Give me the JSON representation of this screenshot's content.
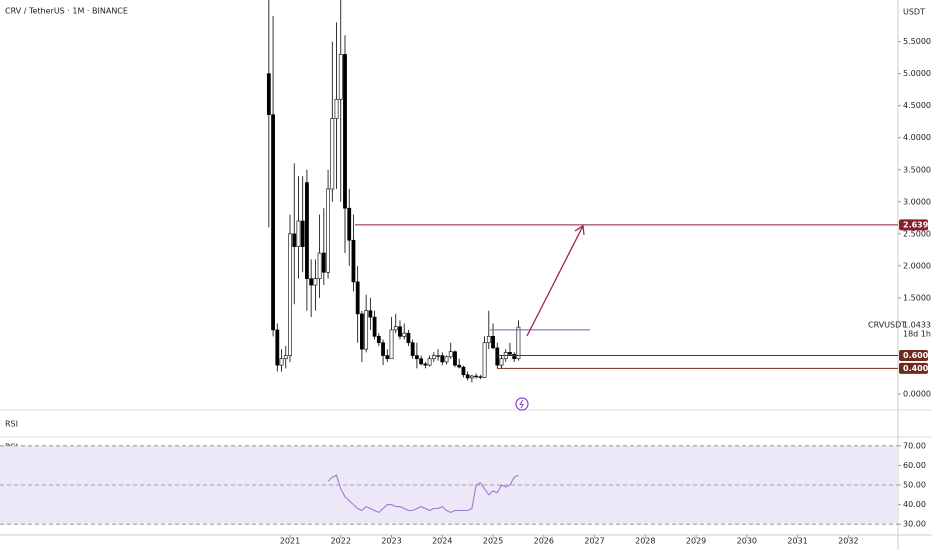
{
  "chart_data": [
    {
      "type": "candlestick",
      "title": "CRV / TetherUS · 1M · BINANCE",
      "currency": "USDT",
      "symbol": "CRVUSDT",
      "countdown": "18d 1h",
      "x": [
        "2020-08",
        "2020-09",
        "2020-10",
        "2020-11",
        "2020-12",
        "2021-01",
        "2021-02",
        "2021-03",
        "2021-04",
        "2021-05",
        "2021-06",
        "2021-07",
        "2021-08",
        "2021-09",
        "2021-10",
        "2021-11",
        "2021-12",
        "2022-01",
        "2022-02",
        "2022-03",
        "2022-04",
        "2022-05",
        "2022-06",
        "2022-07",
        "2022-08",
        "2022-09",
        "2022-10",
        "2022-11",
        "2022-12",
        "2023-01",
        "2023-02",
        "2023-03",
        "2023-04",
        "2023-05",
        "2023-06",
        "2023-07",
        "2023-08",
        "2023-09",
        "2023-10",
        "2023-11",
        "2023-12",
        "2024-01",
        "2024-02",
        "2024-03",
        "2024-04",
        "2024-05",
        "2024-06",
        "2024-07",
        "2024-08",
        "2024-09",
        "2024-10",
        "2024-11",
        "2024-12",
        "2025-01",
        "2025-02",
        "2025-03",
        "2025-04",
        "2025-05",
        "2025-06",
        "2025-07"
      ],
      "open": [
        5.0,
        4.36,
        1.0,
        0.45,
        0.55,
        0.6,
        2.5,
        2.3,
        2.7,
        3.3,
        1.8,
        1.7,
        1.8,
        2.2,
        1.9,
        3.2,
        4.3,
        4.6,
        5.3,
        2.9,
        2.4,
        1.75,
        1.25,
        0.7,
        1.3,
        1.2,
        0.9,
        0.8,
        0.6,
        0.55,
        1.0,
        1.05,
        0.9,
        0.95,
        0.8,
        0.6,
        0.55,
        0.47,
        0.45,
        0.55,
        0.6,
        0.6,
        0.5,
        0.58,
        0.66,
        0.45,
        0.42,
        0.3,
        0.25,
        0.28,
        0.27,
        0.26,
        0.8,
        0.9,
        0.72,
        0.45,
        0.55,
        0.65,
        0.62,
        0.55
      ],
      "high": [
        6.2,
        5.9,
        1.1,
        0.7,
        0.75,
        2.8,
        3.6,
        3.4,
        3.4,
        3.5,
        2.1,
        2.1,
        2.8,
        2.9,
        3.5,
        5.5,
        5.8,
        6.5,
        5.6,
        3.2,
        2.8,
        2.0,
        1.3,
        1.55,
        1.5,
        1.3,
        0.95,
        0.85,
        0.7,
        1.2,
        1.25,
        1.15,
        1.1,
        1.0,
        0.85,
        0.8,
        0.6,
        0.5,
        0.6,
        0.65,
        0.7,
        0.65,
        0.6,
        0.8,
        0.68,
        0.55,
        0.44,
        0.35,
        0.3,
        0.32,
        0.3,
        0.9,
        1.3,
        1.1,
        0.8,
        0.6,
        0.7,
        0.8,
        0.65,
        1.15
      ],
      "low": [
        2.6,
        0.9,
        0.35,
        0.35,
        0.4,
        0.5,
        1.4,
        1.8,
        1.9,
        1.3,
        1.2,
        1.3,
        1.5,
        1.7,
        1.8,
        3.0,
        3.2,
        3.0,
        2.2,
        2.0,
        1.6,
        0.8,
        0.5,
        0.65,
        1.0,
        0.85,
        0.75,
        0.45,
        0.5,
        0.55,
        0.95,
        0.85,
        0.85,
        0.75,
        0.55,
        0.4,
        0.45,
        0.4,
        0.43,
        0.5,
        0.52,
        0.45,
        0.46,
        0.55,
        0.42,
        0.4,
        0.26,
        0.21,
        0.18,
        0.24,
        0.23,
        0.25,
        0.7,
        0.7,
        0.4,
        0.4,
        0.5,
        0.6,
        0.5,
        0.52
      ],
      "close": [
        4.36,
        1.0,
        0.45,
        0.55,
        0.6,
        2.5,
        2.3,
        2.7,
        2.3,
        1.8,
        1.7,
        1.8,
        2.2,
        1.9,
        3.2,
        4.3,
        4.6,
        5.3,
        2.9,
        2.4,
        1.75,
        1.25,
        0.7,
        1.3,
        1.2,
        0.9,
        0.8,
        0.6,
        0.55,
        1.0,
        1.05,
        0.9,
        0.95,
        0.8,
        0.6,
        0.55,
        0.47,
        0.45,
        0.55,
        0.6,
        0.6,
        0.5,
        0.58,
        0.66,
        0.45,
        0.42,
        0.3,
        0.25,
        0.28,
        0.27,
        0.26,
        0.8,
        0.9,
        0.72,
        0.45,
        0.55,
        0.65,
        0.62,
        0.55,
        1.0433
      ],
      "up_color": "#ffffff",
      "down_color": "#000000",
      "wick_color": "#000000",
      "ylim": [
        -0.25,
        6.15
      ],
      "yticks": [
        {
          "value": 0,
          "label": "0.0000"
        },
        {
          "value": 1.5,
          "label": "1.5000"
        },
        {
          "value": 2,
          "label": "2.0000"
        },
        {
          "value": 2.5,
          "label": "2.5000"
        },
        {
          "value": 3,
          "label": "3.0000"
        },
        {
          "value": 3.5,
          "label": "3.5000"
        },
        {
          "value": 4,
          "label": "4.0000"
        },
        {
          "value": 4.5,
          "label": "4.5000"
        },
        {
          "value": 5,
          "label": "5.0000"
        },
        {
          "value": 5.5,
          "label": "5.5000"
        }
      ],
      "xticks": [
        2021,
        2022,
        2023,
        2024,
        2025,
        2026,
        2027,
        2028,
        2029,
        2030,
        2031,
        2032
      ],
      "levels": [
        {
          "value": 2.6395,
          "color": "#8b1f2a",
          "show_label": true
        },
        {
          "value": 0.6001,
          "color": "#6e2a1c",
          "show_label": true
        },
        {
          "value": 0.4005,
          "color": "#6e2a1c",
          "show_label": true
        },
        {
          "value": 1.0,
          "color": "#4a6fb5",
          "show_label": false
        }
      ],
      "arrow_color": "#a3224e"
    },
    {
      "type": "line",
      "title": "RSI",
      "pane_label": "RSI",
      "color": "#9a7fd1",
      "x": [
        "2021-10",
        "2021-11",
        "2021-12",
        "2022-01",
        "2022-02",
        "2022-03",
        "2022-04",
        "2022-05",
        "2022-06",
        "2022-07",
        "2022-08",
        "2022-09",
        "2022-10",
        "2022-11",
        "2022-12",
        "2023-01",
        "2023-02",
        "2023-03",
        "2023-04",
        "2023-05",
        "2023-06",
        "2023-07",
        "2023-08",
        "2023-09",
        "2023-10",
        "2023-11",
        "2023-12",
        "2024-01",
        "2024-02",
        "2024-03",
        "2024-04",
        "2024-05",
        "2024-06",
        "2024-07",
        "2024-08",
        "2024-09",
        "2024-10",
        "2024-11",
        "2024-12",
        "2025-01",
        "2025-02",
        "2025-03",
        "2025-04",
        "2025-05",
        "2025-06",
        "2025-07"
      ],
      "values": [
        52,
        54,
        55,
        48,
        44,
        42,
        40,
        38,
        37,
        39,
        38,
        37,
        36,
        38,
        40,
        40,
        39,
        39,
        38,
        37,
        37,
        38,
        39,
        38,
        37,
        38,
        38,
        39,
        37,
        36,
        37,
        37,
        37,
        37,
        38,
        50,
        51,
        48,
        45,
        47,
        46,
        50,
        49,
        50,
        54,
        55
      ],
      "ylim": [
        25,
        75
      ],
      "yticks": [
        {
          "value": 30,
          "label": "30.00"
        },
        {
          "value": 40,
          "label": "40.00"
        },
        {
          "value": 50,
          "label": "50.00"
        },
        {
          "value": 60,
          "label": "60.00"
        },
        {
          "value": 70,
          "label": "70.00"
        }
      ],
      "levels": [
        70,
        50,
        30
      ],
      "band_color": "#ece8f8"
    }
  ]
}
